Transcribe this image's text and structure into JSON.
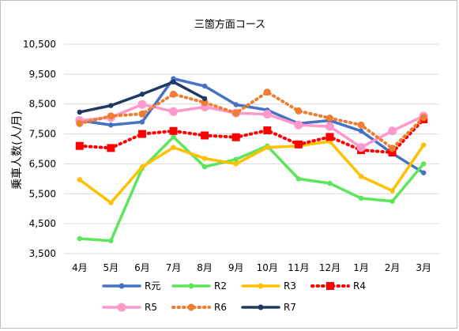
{
  "chart_data": {
    "type": "line",
    "title": "三箇方面コース",
    "ylabel": "乗車人数(人/月)",
    "xlabel": "",
    "categories": [
      "4月",
      "5月",
      "6月",
      "7月",
      "8月",
      "9月",
      "10月",
      "11月",
      "12月",
      "1月",
      "2月",
      "3月"
    ],
    "ylim": [
      3500,
      10500
    ],
    "yticks": [
      3500,
      4500,
      5500,
      6500,
      7500,
      8500,
      9500,
      10500
    ],
    "ytick_labels": [
      "3,500",
      "4,500",
      "5,500",
      "6,500",
      "7,500",
      "8,500",
      "9,500",
      "10,500"
    ],
    "grid": true,
    "legend_position": "bottom",
    "series": [
      {
        "name": "R元",
        "color": "#4472c4",
        "style": "solid",
        "marker": "circle",
        "values": [
          7950,
          7800,
          7900,
          9350,
          9100,
          8480,
          8300,
          7850,
          7950,
          7600,
          6850,
          6200
        ]
      },
      {
        "name": "R2",
        "color": "#5ce65c",
        "style": "solid",
        "marker": "circle",
        "values": [
          4000,
          3930,
          6350,
          7400,
          6400,
          6650,
          7100,
          6000,
          5850,
          5350,
          5250,
          6500
        ]
      },
      {
        "name": "R3",
        "color": "#ffc000",
        "style": "solid",
        "marker": "circle",
        "values": [
          5970,
          5200,
          6400,
          7050,
          6680,
          6500,
          7050,
          7100,
          7250,
          6080,
          5600,
          7130
        ]
      },
      {
        "name": "R4",
        "color": "#ff0000",
        "style": "dotted",
        "marker": "square",
        "values": [
          7100,
          7030,
          7500,
          7600,
          7450,
          7390,
          7620,
          7150,
          7400,
          6960,
          6880,
          7990
        ]
      },
      {
        "name": "R5",
        "color": "#ff99cc",
        "style": "solid",
        "marker": "circle",
        "values": [
          7950,
          8050,
          8490,
          8250,
          8400,
          8200,
          8160,
          7800,
          7750,
          7050,
          7600,
          8100
        ]
      },
      {
        "name": "R6",
        "color": "#ed7d31",
        "style": "dotted",
        "marker": "circle",
        "values": [
          7850,
          8100,
          8170,
          8830,
          8550,
          8200,
          8900,
          8270,
          8030,
          7800,
          7020,
          8050
        ]
      },
      {
        "name": "R7",
        "color": "#203864",
        "style": "solid",
        "marker": "circle",
        "values": [
          8230,
          8450,
          8830,
          9240,
          8680,
          null,
          null,
          null,
          null,
          null,
          null,
          null
        ]
      }
    ]
  }
}
